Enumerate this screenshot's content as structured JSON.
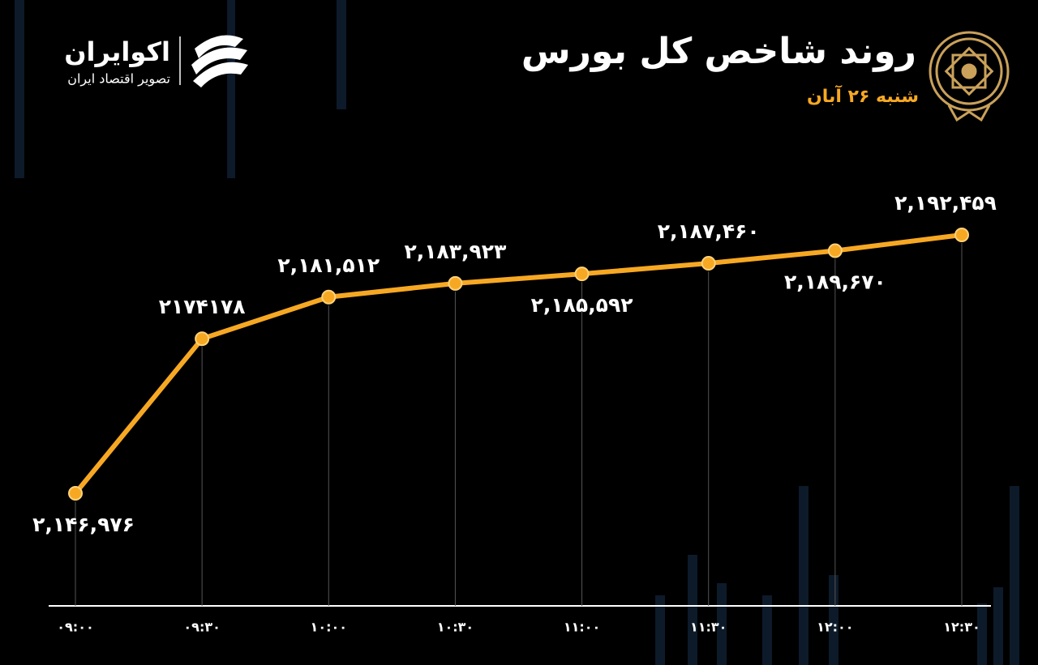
{
  "chart_data": {
    "type": "line",
    "title": "روند شاخص کل بورس",
    "subtitle": "شنبه ۲۶ آبان",
    "categories": [
      "۰۹:۰۰",
      "۰۹:۳۰",
      "۱۰:۰۰",
      "۱۰:۳۰",
      "۱۱:۰۰",
      "۱۱:۳۰",
      "۱۲:۰۰",
      "۱۲:۳۰"
    ],
    "values": [
      2146976,
      2174178,
      2181512,
      2183923,
      2185592,
      2187460,
      2189670,
      2192459
    ],
    "value_labels": [
      "۲,۱۴۶,۹۷۶",
      "۲۱۷۴۱۷۸",
      "۲,۱۸۱,۵۱۲",
      "۲,۱۸۳,۹۲۳",
      "۲,۱۸۵,۵۹۲",
      "۲,۱۸۷,۴۶۰",
      "۲,۱۸۹,۶۷۰",
      "۲,۱۹۲,۴۵۹"
    ],
    "color": "#f7a823"
  },
  "brand": {
    "name": "اکوایران",
    "tagline": "تصویر اقتصاد ایران"
  }
}
